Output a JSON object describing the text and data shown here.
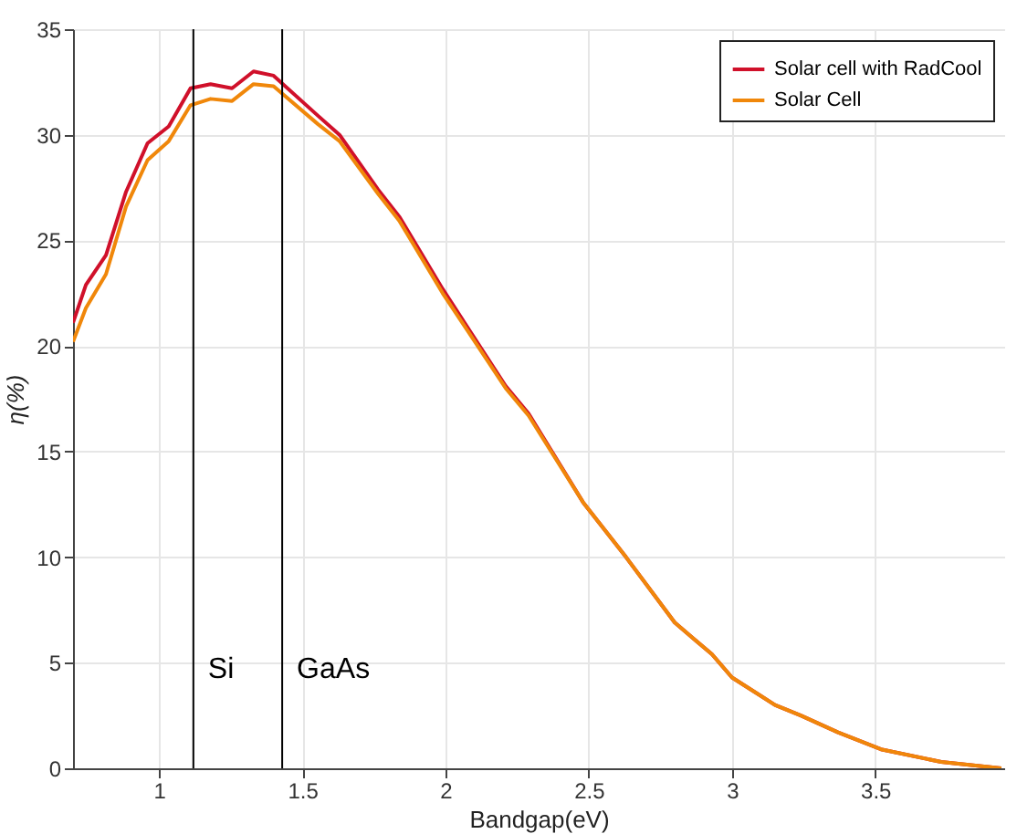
{
  "chart_data": {
    "type": "line",
    "xlabel": "Bandgap(eV)",
    "ylabel": "η(%)",
    "x": [
      0.7,
      0.745,
      0.815,
      0.885,
      0.96,
      1.034,
      1.11,
      1.18,
      1.255,
      1.33,
      1.4,
      1.555,
      1.63,
      1.765,
      1.84,
      1.99,
      2.21,
      2.29,
      2.48,
      2.63,
      2.8,
      2.93,
      3.0,
      3.15,
      3.24,
      3.37,
      3.52,
      3.73,
      3.94
    ],
    "series": [
      {
        "name": "Solar cell with RadCool",
        "color": "#d0102a",
        "values": [
          21.1,
          22.9,
          24.3,
          27.3,
          29.6,
          30.4,
          32.2,
          32.4,
          32.2,
          33.0,
          32.8,
          30.9,
          30.0,
          27.4,
          26.1,
          22.7,
          18.1,
          16.8,
          12.6,
          10.0,
          6.9,
          5.4,
          4.3,
          3.0,
          2.5,
          1.7,
          0.9,
          0.3,
          0
        ]
      },
      {
        "name": "Solar Cell",
        "color": "#f0870a",
        "values": [
          20.2,
          21.8,
          23.4,
          26.6,
          28.8,
          29.7,
          31.4,
          31.7,
          31.6,
          32.4,
          32.3,
          30.5,
          29.7,
          27.2,
          25.9,
          22.5,
          18.0,
          16.7,
          12.6,
          10.0,
          6.9,
          5.4,
          4.3,
          3.0,
          2.5,
          1.7,
          0.9,
          0.3,
          0
        ]
      }
    ],
    "xlim": [
      0.7,
      3.95
    ],
    "ylim": [
      0,
      35
    ],
    "xticks": [
      1,
      1.5,
      2,
      2.5,
      3,
      3.5
    ],
    "yticks": [
      0,
      5,
      10,
      15,
      20,
      25,
      30,
      35
    ],
    "ref_lines": [
      {
        "axis": "x",
        "value": 1.12,
        "label": "Si",
        "color": "#000000"
      },
      {
        "axis": "x",
        "value": 1.43,
        "label": "GaAs",
        "color": "#000000"
      }
    ],
    "grid": true,
    "legend": "top right",
    "line_style": "solid"
  }
}
